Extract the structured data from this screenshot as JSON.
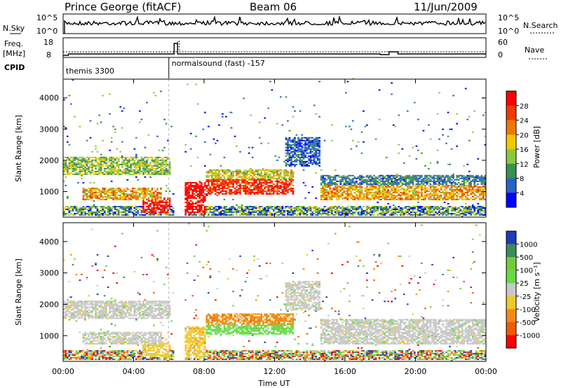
{
  "header": {
    "station": "Prince George (fitACF)",
    "beam": "Beam 06",
    "date": "11/Jun/2009"
  },
  "strip_labels": {
    "nsky": "N.Sky",
    "nsearch": "N.Search",
    "freq_line1": "Freq.",
    "freq_line2": "[MHz]",
    "nave": "Nave",
    "cpid": "CPID"
  },
  "chart_data": [
    {
      "type": "line",
      "name": "nsky_nsearch",
      "left_ticks": [
        "10^5",
        "10^0"
      ],
      "right_ticks": [
        "10^5",
        "10^0"
      ]
    },
    {
      "type": "line",
      "name": "freq_nave",
      "left_ticks": [
        "18",
        "8"
      ],
      "right_ticks": [
        "60",
        "0"
      ],
      "freq_mhz": [
        [
          0,
          9.5
        ],
        [
          0.3,
          10.5
        ],
        [
          6,
          10.5
        ],
        [
          6.3,
          18
        ],
        [
          6.5,
          10.5
        ],
        [
          15,
          10.5
        ],
        [
          18,
          10
        ],
        [
          18.5,
          12
        ],
        [
          19,
          10.5
        ],
        [
          24,
          10.5
        ]
      ],
      "nave": [
        [
          0,
          20
        ],
        [
          6.4,
          20
        ],
        [
          6.5,
          58
        ],
        [
          6.6,
          20
        ],
        [
          24,
          20
        ]
      ]
    },
    {
      "type": "table",
      "name": "cpid_segments",
      "segments": [
        {
          "label": "themis 3300",
          "start_h": 0
        },
        {
          "label": "normalsound (fast) -157",
          "start_h": 6.0
        }
      ]
    },
    {
      "type": "heatmap",
      "name": "power",
      "ylabel": "Slant Range [km]",
      "y_ticks": [
        1000,
        2000,
        3000,
        4000
      ],
      "ylim": [
        180,
        4600
      ],
      "xlim": [
        0,
        24
      ],
      "x_ticks_h": [
        0,
        4,
        8,
        12,
        16,
        20,
        24
      ],
      "colorbar": {
        "label": "Power [dB]",
        "ticks": [
          "28",
          "24",
          "20",
          "16",
          "12",
          "8",
          "4"
        ],
        "colors": [
          "#ff0000",
          "#f03a00",
          "#f07800",
          "#f0c800",
          "#8cc83c",
          "#3c9050",
          "#2864c8",
          "#0000ff"
        ]
      },
      "regions": [
        {
          "t0": 0.0,
          "t1": 6.0,
          "r0": 1500,
          "r1": 2100,
          "level": [
            0.25,
            0.6
          ]
        },
        {
          "t0": 1.0,
          "t1": 5.5,
          "r0": 700,
          "r1": 1100,
          "level": [
            0.4,
            0.85
          ]
        },
        {
          "t0": 4.5,
          "t1": 6.0,
          "r0": 300,
          "r1": 800,
          "level": [
            0.8,
            1.0
          ]
        },
        {
          "t0": 6.8,
          "t1": 8.0,
          "r0": 250,
          "r1": 1300,
          "level": [
            0.85,
            1.0
          ]
        },
        {
          "t0": 8.0,
          "t1": 13.0,
          "r0": 900,
          "r1": 1350,
          "level": [
            0.7,
            1.0
          ]
        },
        {
          "t0": 8.0,
          "t1": 13.0,
          "r0": 1350,
          "r1": 1700,
          "level": [
            0.35,
            0.7
          ]
        },
        {
          "t0": 14.5,
          "t1": 24.0,
          "r0": 700,
          "r1": 1200,
          "level": [
            0.45,
            0.8
          ]
        },
        {
          "t0": 14.5,
          "t1": 24.0,
          "r0": 1200,
          "r1": 1500,
          "level": [
            0.1,
            0.4
          ]
        },
        {
          "t0": 12.5,
          "t1": 14.5,
          "r0": 1800,
          "r1": 2700,
          "level": [
            0.05,
            0.35
          ]
        },
        {
          "t0": 0.0,
          "t1": 24.0,
          "r0": 200,
          "r1": 500,
          "level": [
            0.05,
            0.6
          ]
        }
      ]
    },
    {
      "type": "heatmap",
      "name": "velocity",
      "ylabel": "Slant Range [km]",
      "xlabel": "Time UT",
      "y_ticks": [
        1000,
        2000,
        3000,
        4000
      ],
      "ylim": [
        180,
        4600
      ],
      "xlim": [
        0,
        24
      ],
      "x_ticks": [
        "00:00",
        "04:00",
        "08:00",
        "12:00",
        "16:00",
        "20:00",
        "00:00"
      ],
      "x_ticks_h": [
        0,
        4,
        8,
        12,
        16,
        20,
        24
      ],
      "colorbar": {
        "label": "Velocity [m s⁻¹]",
        "ticks": [
          "1000",
          "500",
          "100",
          "25",
          "-25",
          "-100",
          "-500",
          "-1000"
        ],
        "colors": [
          "#1e3cb4",
          "#3c8c5a",
          "#78c83c",
          "#64dc46",
          "#c8c8c8",
          "#f0c828",
          "#f08c14",
          "#f05a00",
          "#ff0000"
        ]
      },
      "regions": [
        {
          "t0": 0.0,
          "t1": 6.0,
          "r0": 1500,
          "r1": 2100,
          "cls": "grey"
        },
        {
          "t0": 1.0,
          "t1": 5.5,
          "r0": 700,
          "r1": 1100,
          "cls": "grey"
        },
        {
          "t0": 4.5,
          "t1": 6.0,
          "r0": 300,
          "r1": 800,
          "cls": "yellow"
        },
        {
          "t0": 6.8,
          "t1": 8.0,
          "r0": 250,
          "r1": 1300,
          "cls": "yellow"
        },
        {
          "t0": 8.0,
          "t1": 13.0,
          "r0": 1350,
          "r1": 1700,
          "cls": "orange"
        },
        {
          "t0": 8.0,
          "t1": 13.0,
          "r0": 1000,
          "r1": 1350,
          "cls": "green"
        },
        {
          "t0": 14.5,
          "t1": 24.0,
          "r0": 700,
          "r1": 1500,
          "cls": "grey"
        },
        {
          "t0": 12.5,
          "t1": 14.5,
          "r0": 1800,
          "r1": 2700,
          "cls": "grey"
        },
        {
          "t0": 0.0,
          "t1": 24.0,
          "r0": 200,
          "r1": 500,
          "cls": "mixed"
        }
      ]
    }
  ]
}
